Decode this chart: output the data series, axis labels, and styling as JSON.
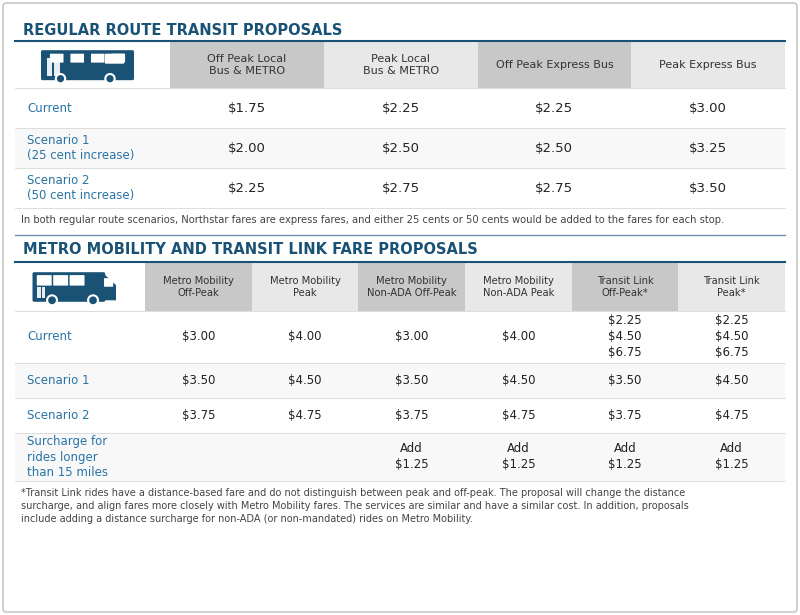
{
  "bg_color": "#ffffff",
  "border_color": "#c8c8c8",
  "blue_header_color": "#1a5276",
  "light_blue_text": "#2874a6",
  "header_bg_dark": "#c8c8c8",
  "header_bg_light": "#e8e8e8",
  "white_bg": "#ffffff",
  "row_alt_bg": "#f8f8f8",
  "section1_title": "REGULAR ROUTE TRANSIT PROPOSALS",
  "section2_title": "METRO MOBILITY AND TRANSIT LINK FARE PROPOSALS",
  "rr_col_headers": [
    "Off Peak Local\nBus & METRO",
    "Peak Local\nBus & METRO",
    "Off Peak Express Bus",
    "Peak Express Bus"
  ],
  "rr_row_labels": [
    "Current",
    "Scenario 1\n(25 cent increase)",
    "Scenario 2\n(50 cent increase)"
  ],
  "rr_data": [
    [
      "$1.75",
      "$2.25",
      "$2.25",
      "$3.00"
    ],
    [
      "$2.00",
      "$2.50",
      "$2.50",
      "$3.25"
    ],
    [
      "$2.25",
      "$2.75",
      "$2.75",
      "$3.50"
    ]
  ],
  "rr_note": "In both regular route scenarios, Northstar fares are express fares, and either 25 cents or 50 cents would be added to the fares for each stop.",
  "mm_col_headers": [
    "Metro Mobility\nOff-Peak",
    "Metro Mobility\nPeak",
    "Metro Mobility\nNon-ADA Off-Peak",
    "Metro Mobility\nNon-ADA Peak",
    "Transit Link\nOff-Peak*",
    "Transit Link\nPeak*"
  ],
  "mm_row_labels": [
    "Current",
    "Scenario 1",
    "Scenario 2",
    "Surcharge for\nrides longer\nthan 15 miles"
  ],
  "mm_data": [
    [
      "$3.00",
      "$4.00",
      "$3.00",
      "$4.00",
      "$2.25\n$4.50\n$6.75",
      "$2.25\n$4.50\n$6.75"
    ],
    [
      "$3.50",
      "$4.50",
      "$3.50",
      "$4.50",
      "$3.50",
      "$4.50"
    ],
    [
      "$3.75",
      "$4.75",
      "$3.75",
      "$4.75",
      "$3.75",
      "$4.75"
    ],
    [
      "",
      "",
      "Add\n$1.25",
      "Add\n$1.25",
      "Add\n$1.25",
      "Add\n$1.25"
    ]
  ],
  "mm_note": "*Transit Link rides have a distance-based fare and do not distinguish between peak and off-peak. The proposal will change the distance\nsurcharge, and align fares more closely with Metro Mobility fares. The services are similar and have a similar cost. In addition, proposals\ninclude adding a distance surcharge for non-ADA (or non-mandated) rides on Metro Mobility."
}
